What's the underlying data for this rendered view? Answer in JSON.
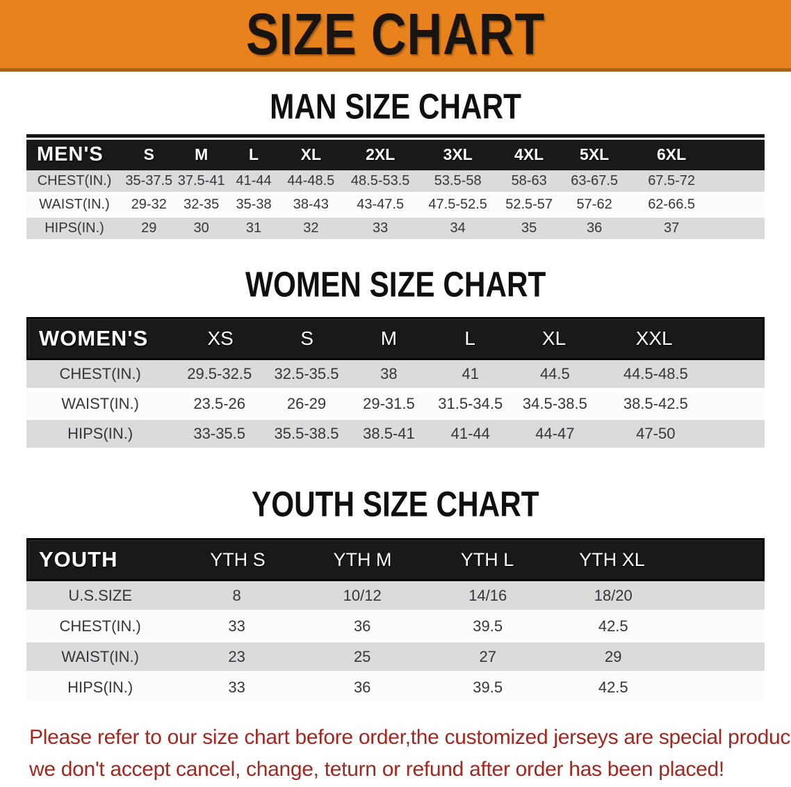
{
  "banner": {
    "title": "SIZE CHART"
  },
  "men_section": {
    "heading": "MAN SIZE CHART",
    "table": {
      "corner": "MEN'S",
      "sizes": [
        "S",
        "M",
        "L",
        "XL",
        "2XL",
        "3XL",
        "4XL",
        "5XL",
        "6XL"
      ],
      "rows": [
        {
          "label": "CHEST(IN.)",
          "values": [
            "35-37.5",
            "37.5-41",
            "41-44",
            "44-48.5",
            "48.5-53.5",
            "53.5-58",
            "58-63",
            "63-67.5",
            "67.5-72"
          ]
        },
        {
          "label": "WAIST(IN.)",
          "values": [
            "29-32",
            "32-35",
            "35-38",
            "38-43",
            "43-47.5",
            "47.5-52.5",
            "52.5-57",
            "57-62",
            "62-66.5"
          ]
        },
        {
          "label": "HIPS(IN.)",
          "values": [
            "29",
            "30",
            "31",
            "32",
            "33",
            "34",
            "35",
            "36",
            "37"
          ]
        }
      ]
    }
  },
  "women_section": {
    "heading": "WOMEN SIZE CHART",
    "table": {
      "corner": "WOMEN'S",
      "sizes": [
        "XS",
        "S",
        "M",
        "L",
        "XL",
        "XXL"
      ],
      "rows": [
        {
          "label": "CHEST(IN.)",
          "values": [
            "29.5-32.5",
            "32.5-35.5",
            "38",
            "41",
            "44.5",
            "44.5-48.5"
          ]
        },
        {
          "label": "WAIST(IN.)",
          "values": [
            "23.5-26",
            "26-29",
            "29-31.5",
            "31.5-34.5",
            "34.5-38.5",
            "38.5-42.5"
          ]
        },
        {
          "label": "HIPS(IN.)",
          "values": [
            "33-35.5",
            "35.5-38.5",
            "38.5-41",
            "41-44",
            "44-47",
            "47-50"
          ]
        }
      ]
    }
  },
  "youth_section": {
    "heading": "YOUTH SIZE CHART",
    "table": {
      "corner": "YOUTH",
      "sizes": [
        "YTH S",
        "YTH M",
        "YTH L",
        "YTH XL"
      ],
      "rows": [
        {
          "label": "U.S.SIZE",
          "values": [
            "8",
            "10/12",
            "14/16",
            "18/20"
          ]
        },
        {
          "label": "CHEST(IN.)",
          "values": [
            "33",
            "36",
            "39.5",
            "42.5"
          ]
        },
        {
          "label": "WAIST(IN.)",
          "values": [
            "23",
            "25",
            "27",
            "29"
          ]
        },
        {
          "label": "HIPS(IN.)",
          "values": [
            "33",
            "36",
            "39.5",
            "42.5"
          ]
        }
      ]
    }
  },
  "footer": {
    "line1": "Please refer to our size chart before order,the customized jerseys are special products,",
    "line2": "we don't accept cancel, change, teturn or refund after order has been placed!"
  },
  "colors": {
    "banner_orange": "#e8821d",
    "banner_border": "#a95f14",
    "header_bar_black": "#191919",
    "row_gray": "#dbdbdb",
    "row_white": "#fcfcfc",
    "table_text": "#35353b",
    "footer_red": "#a3261f"
  }
}
